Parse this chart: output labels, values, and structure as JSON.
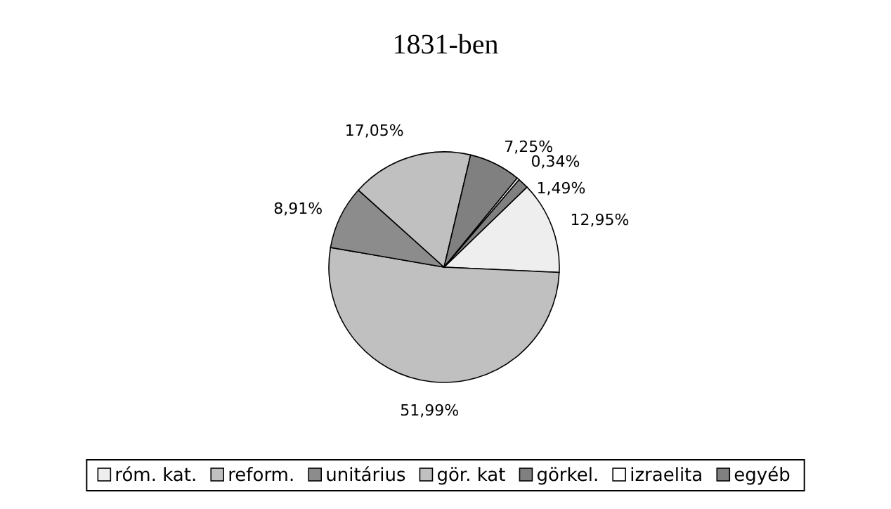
{
  "chart_data": {
    "type": "pie",
    "title": "1831-ben",
    "categories": [
      "róm. kat.",
      "reform.",
      "unitárius",
      "gör. kat",
      "görkel.",
      "izraelita",
      "egyéb"
    ],
    "values": [
      12.95,
      51.99,
      8.91,
      17.05,
      7.25,
      0.34,
      1.49
    ],
    "value_labels": [
      "12,95%",
      "51,99%",
      "8,91%",
      "17,05%",
      "7,25%",
      "0,34%",
      "1,49%"
    ],
    "colors": [
      "#eeeeee",
      "#c0c0c0",
      "#8c8c8c",
      "#c0c0c0",
      "#808080",
      "#ffffff",
      "#808080"
    ],
    "legend": "bottom"
  }
}
